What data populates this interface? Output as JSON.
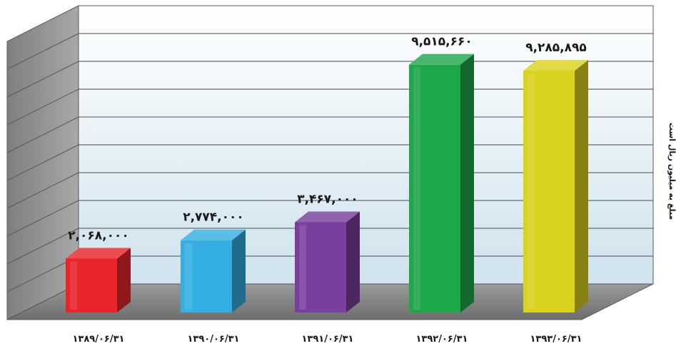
{
  "chart_data": {
    "type": "bar",
    "categories": [
      "۱۳۸۹/۰۶/۳۱",
      "۱۳۹۰/۰۶/۳۱",
      "۱۳۹۱/۰۶/۳۱",
      "۱۳۹۲/۰۶/۳۱",
      "۱۳۹۳/۰۶/۳۱"
    ],
    "values": [
      2068000,
      2774000,
      3467000,
      9515660,
      9285895
    ],
    "data_labels": [
      "۲,۰۶۸,۰۰۰",
      "۲,۷۷۴,۰۰۰",
      "۳,۴۶۷,۰۰۰",
      "۹,۵۱۵,۶۶۰",
      "۹,۲۸۵,۸۹۵"
    ],
    "bar_colors": [
      "#e8252a",
      "#35aee3",
      "#7a3f9e",
      "#1fa84a",
      "#d9d21e"
    ],
    "ylabel": "مبلغ به میلیون ریال است",
    "xlabel": "",
    "title": "",
    "ylim": [
      0,
      10000000
    ],
    "grid": true,
    "legend": "none",
    "style": "3d-column"
  }
}
